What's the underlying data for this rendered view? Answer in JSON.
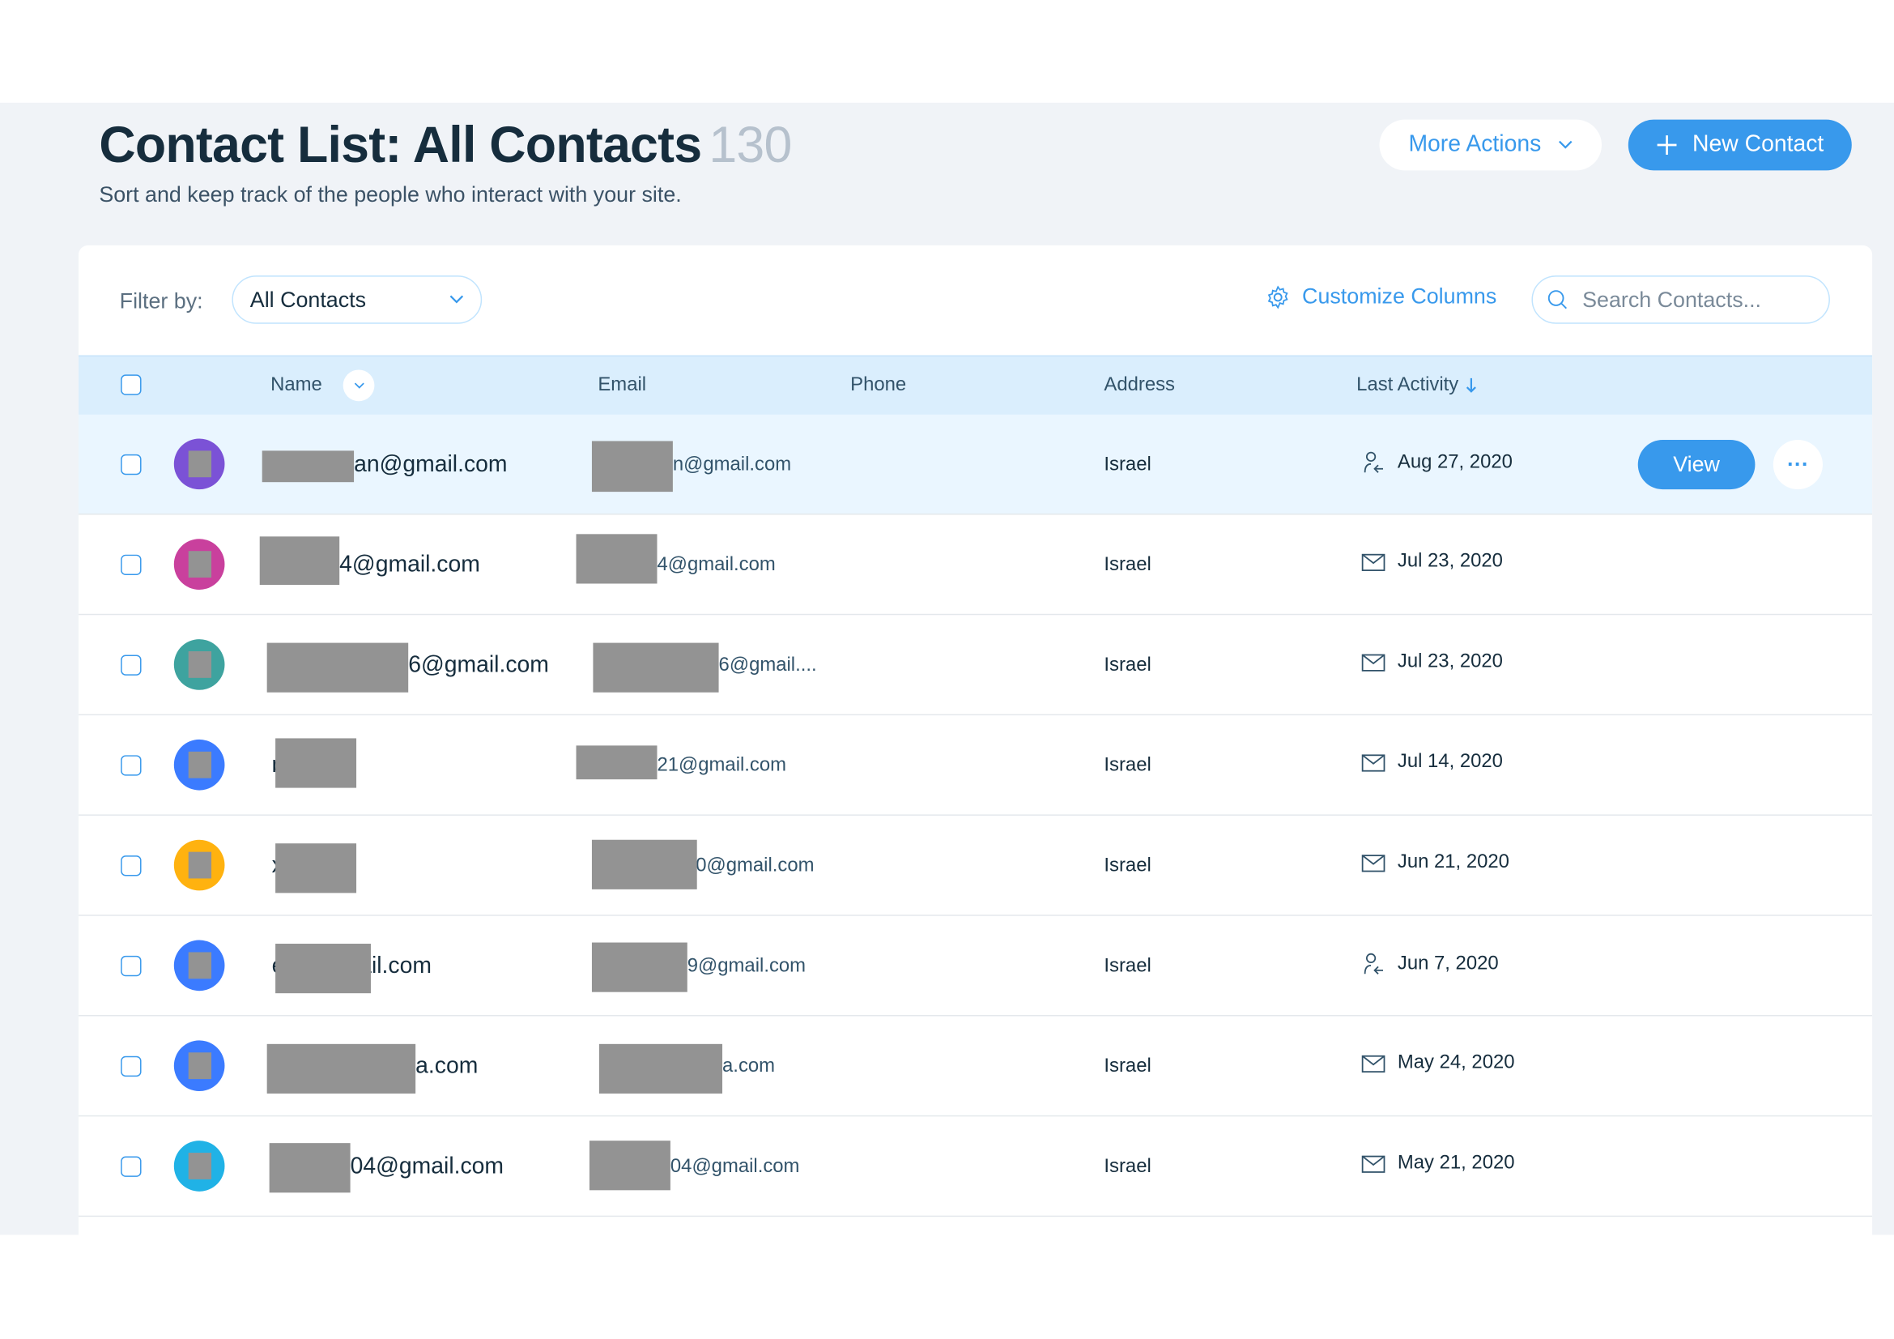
{
  "header": {
    "title": "Contact List: All Contacts",
    "count": "130",
    "subtitle": "Sort and keep track of the people who interact with your site.",
    "more_actions": "More Actions",
    "new_contact": "New Contact"
  },
  "toolbar": {
    "filter_label": "Filter by:",
    "filter_value": "All Contacts",
    "customize_columns": "Customize Columns",
    "search_placeholder": "Search Contacts..."
  },
  "columns": {
    "name": "Name",
    "email": "Email",
    "phone": "Phone",
    "address": "Address",
    "last_activity": "Last Activity"
  },
  "row_actions": {
    "view": "View",
    "more": "···"
  },
  "colors": {
    "accent": "#3899ec",
    "header_bg": "#daeefd",
    "title": "#162d3d"
  },
  "rows": [
    {
      "avatar_color": "#7b52d6",
      "name": "an@gmail.com",
      "email": "n@gmail.com",
      "address": "Israel",
      "activity_icon": "contact-arrow-icon",
      "date": "Aug 27, 2020"
    },
    {
      "avatar_color": "#c9409d",
      "name": "4@gmail.com",
      "email": "4@gmail.com",
      "address": "Israel",
      "activity_icon": "envelope-icon",
      "date": "Jul 23, 2020"
    },
    {
      "avatar_color": "#3ea39f",
      "name": "6@gmail.com",
      "email": "6@gmail....",
      "address": "Israel",
      "activity_icon": "envelope-icon",
      "date": "Jul 23, 2020"
    },
    {
      "avatar_color": "#3b7bff",
      "name": "ɒ x",
      "email": "21@gmail.com",
      "address": "Israel",
      "activity_icon": "envelope-icon",
      "date": "Jul 14, 2020"
    },
    {
      "avatar_color": "#ffb20f",
      "name": "x ıı",
      "email": "0@gmail.com",
      "address": "Israel",
      "activity_icon": "envelope-icon",
      "date": "Jun 21, 2020"
    },
    {
      "avatar_color": "#3b7bff",
      "name": "e 9@gmail.com",
      "email": "9@gmail.com",
      "address": "Israel",
      "activity_icon": "contact-arrow-icon",
      "date": "Jun 7, 2020"
    },
    {
      "avatar_color": "#3b7bff",
      "name": "a.com",
      "email": "a.com",
      "address": "Israel",
      "activity_icon": "envelope-icon",
      "date": "May 24, 2020"
    },
    {
      "avatar_color": "#20b2e6",
      "name": "04@gmail.com",
      "email": "04@gmail.com",
      "address": "Israel",
      "activity_icon": "envelope-icon",
      "date": "May 21, 2020"
    }
  ]
}
